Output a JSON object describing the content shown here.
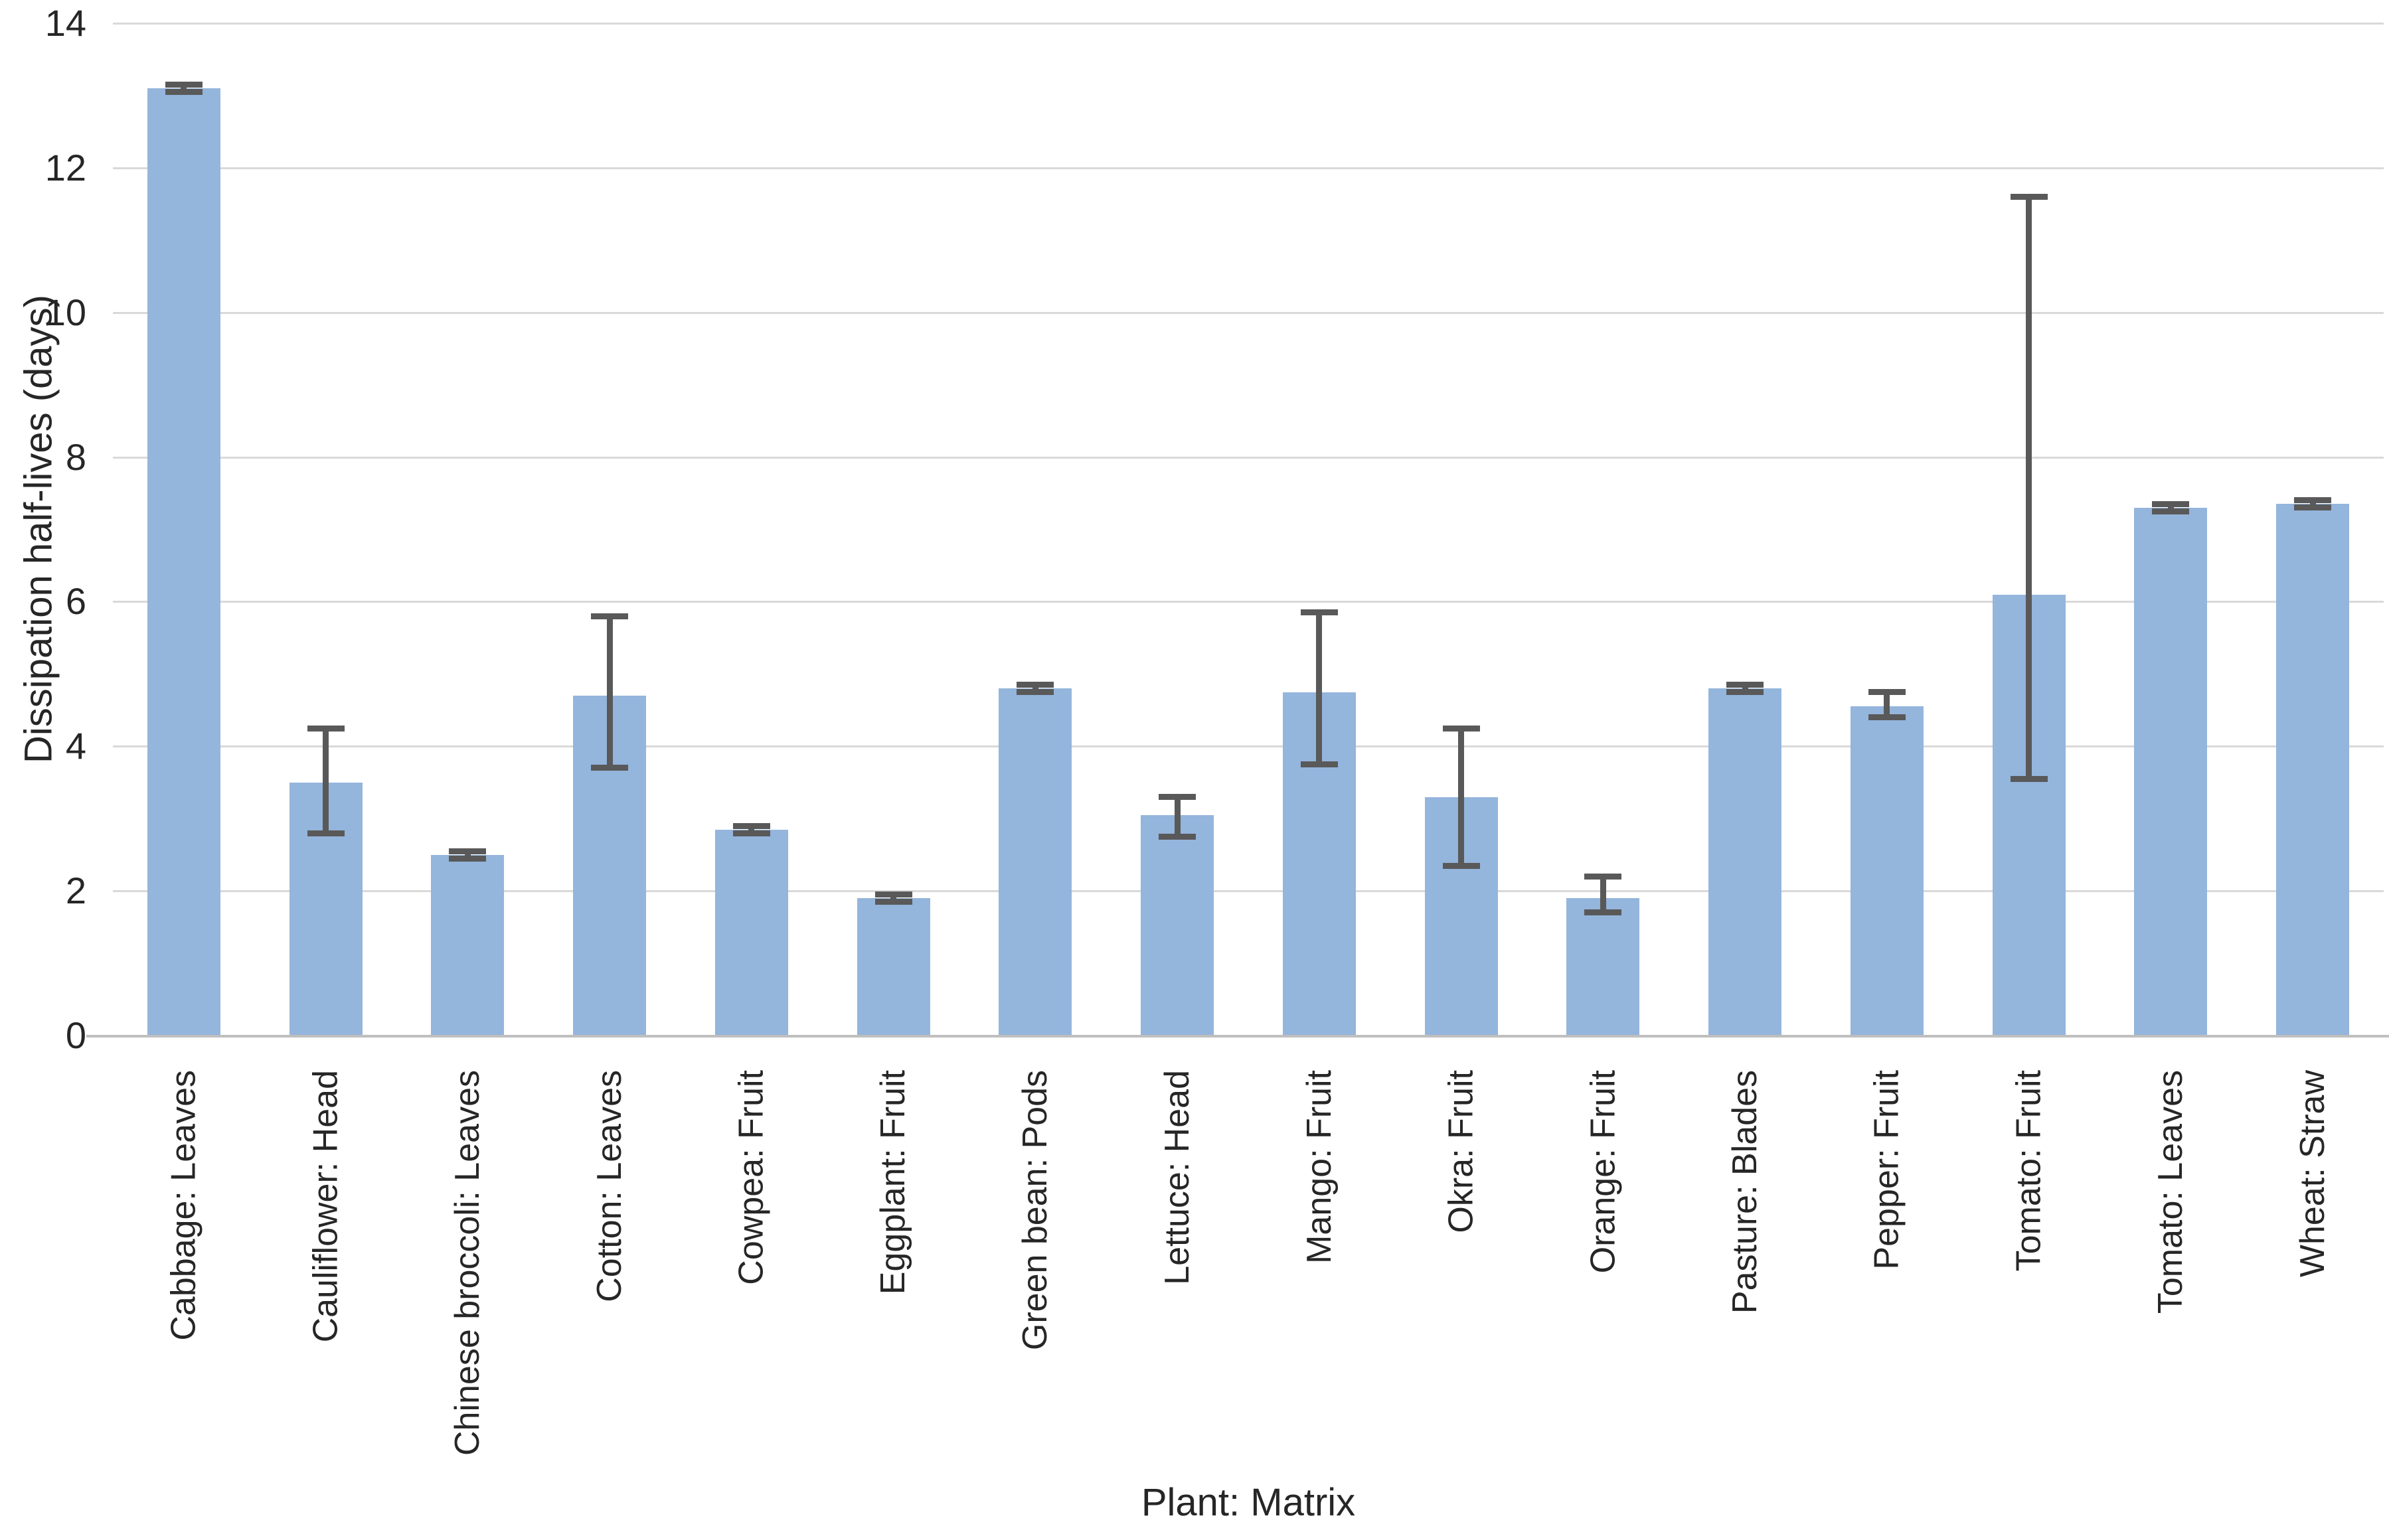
{
  "chart_data": {
    "type": "bar",
    "title": "",
    "xlabel": "Plant: Matrix",
    "ylabel": "Dissipation half-lives (days)",
    "ylim": [
      0,
      14
    ],
    "yticks": [
      0,
      2,
      4,
      6,
      8,
      10,
      12,
      14
    ],
    "grid": true,
    "legend": false,
    "categories": [
      "Cabbage: Leaves",
      "Cauliflower: Head",
      "Chinese broccoli: Leaves",
      "Cotton: Leaves",
      "Cowpea: Fruit",
      "Eggplant: Fruit",
      "Green bean: Pods",
      "Lettuce: Head",
      "Mango: Fruit",
      "Okra: Fruit",
      "Orange: Fruit",
      "Pasture: Blades",
      "Pepper: Fruit",
      "Tomato: Fruit",
      "Tomato: Leaves",
      "Wheat: Straw"
    ],
    "values": [
      13.1,
      3.5,
      2.5,
      4.7,
      2.85,
      1.9,
      4.8,
      3.05,
      4.75,
      3.3,
      1.9,
      4.8,
      4.55,
      6.1,
      7.3,
      7.35
    ],
    "error_min": [
      13.05,
      2.8,
      2.45,
      3.7,
      2.8,
      1.85,
      4.75,
      2.75,
      3.75,
      2.35,
      1.7,
      4.75,
      4.4,
      3.55,
      7.25,
      7.3
    ],
    "error_max": [
      13.15,
      4.25,
      2.55,
      5.8,
      2.9,
      1.95,
      4.85,
      3.3,
      5.85,
      4.25,
      2.2,
      4.85,
      4.75,
      11.6,
      7.35,
      7.4
    ],
    "bar_color": "#94B5DC",
    "error_color": "#595959",
    "gridline_color": "#D9D9D9",
    "axis_line_color": "#BFBFBF",
    "text_color": "#262626"
  }
}
